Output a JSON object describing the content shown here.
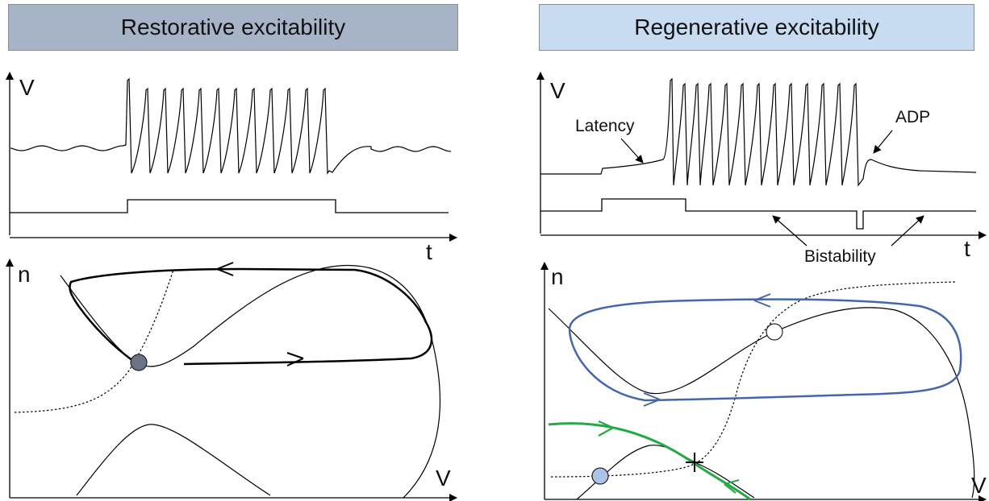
{
  "panels": {
    "left": {
      "title": "Restorative excitability",
      "trace_axes": {
        "y_label": "V",
        "x_label": "t"
      },
      "phase_axes": {
        "y_label": "n",
        "x_label": "V"
      }
    },
    "right": {
      "title": "Regenerative excitability",
      "trace_axes": {
        "y_label": "V",
        "x_label": "t"
      },
      "phase_axes": {
        "y_label": "n",
        "x_label": "V"
      },
      "annotations": {
        "latency": "Latency",
        "adp": "ADP",
        "bistability": "Bistability"
      }
    }
  },
  "colors": {
    "left_banner": "#a7b4c8",
    "right_banner": "#c7dcf1",
    "stable_point_left": "#6b7486",
    "stable_point_right": "#a9c4e6",
    "limit_cycle_right": "#4466aa",
    "separatrix_right": "#22aa44"
  }
}
